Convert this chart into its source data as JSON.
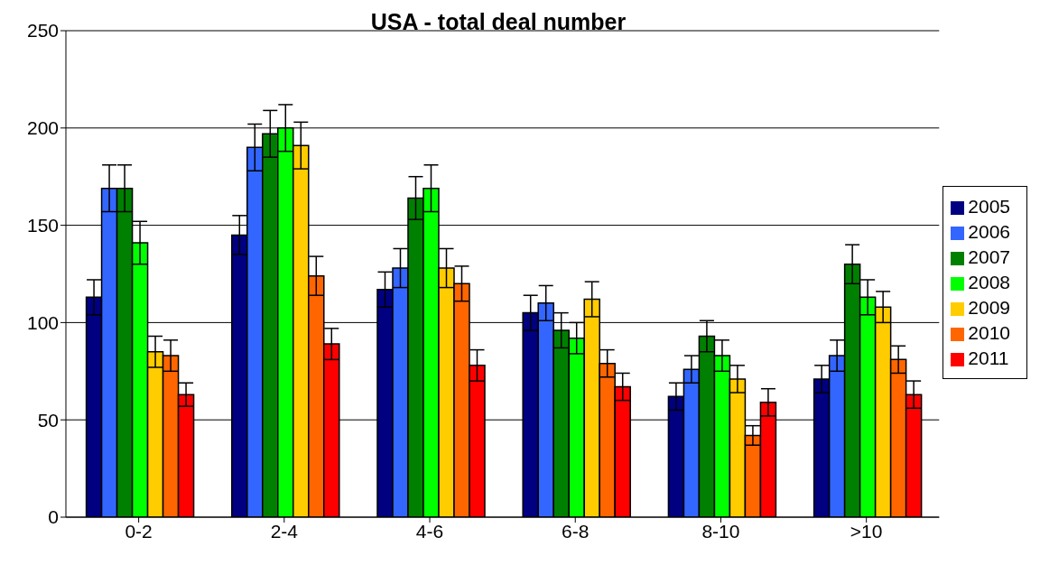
{
  "chart_data": {
    "type": "bar",
    "title": "USA - total deal number",
    "categories": [
      "0-2",
      "2-4",
      "4-6",
      "6-8",
      "8-10",
      ">10"
    ],
    "series": [
      {
        "name": "2005",
        "color": "#000080",
        "values": [
          113,
          145,
          117,
          105,
          62,
          71
        ],
        "errors": [
          9,
          10,
          9,
          9,
          7,
          7
        ]
      },
      {
        "name": "2006",
        "color": "#3366ff",
        "values": [
          169,
          190,
          128,
          110,
          76,
          83
        ],
        "errors": [
          12,
          12,
          10,
          9,
          7,
          8
        ]
      },
      {
        "name": "2007",
        "color": "#008000",
        "values": [
          169,
          197,
          164,
          96,
          93,
          130
        ],
        "errors": [
          12,
          12,
          11,
          9,
          8,
          10
        ]
      },
      {
        "name": "2008",
        "color": "#00ff00",
        "values": [
          141,
          200,
          169,
          92,
          83,
          113
        ],
        "errors": [
          11,
          12,
          12,
          8,
          8,
          9
        ]
      },
      {
        "name": "2009",
        "color": "#ffcc00",
        "values": [
          85,
          191,
          128,
          112,
          71,
          108
        ],
        "errors": [
          8,
          12,
          10,
          9,
          7,
          8
        ]
      },
      {
        "name": "2010",
        "color": "#ff6600",
        "values": [
          83,
          124,
          120,
          79,
          42,
          81
        ],
        "errors": [
          8,
          10,
          9,
          7,
          5,
          7
        ]
      },
      {
        "name": "2011",
        "color": "#ff0000",
        "values": [
          63,
          89,
          78,
          67,
          59,
          63
        ],
        "errors": [
          6,
          8,
          8,
          7,
          7,
          7
        ]
      }
    ],
    "ylim": [
      0,
      250
    ],
    "yticks": [
      0,
      50,
      100,
      150,
      200,
      250
    ],
    "grid": "y",
    "legend": "right"
  }
}
